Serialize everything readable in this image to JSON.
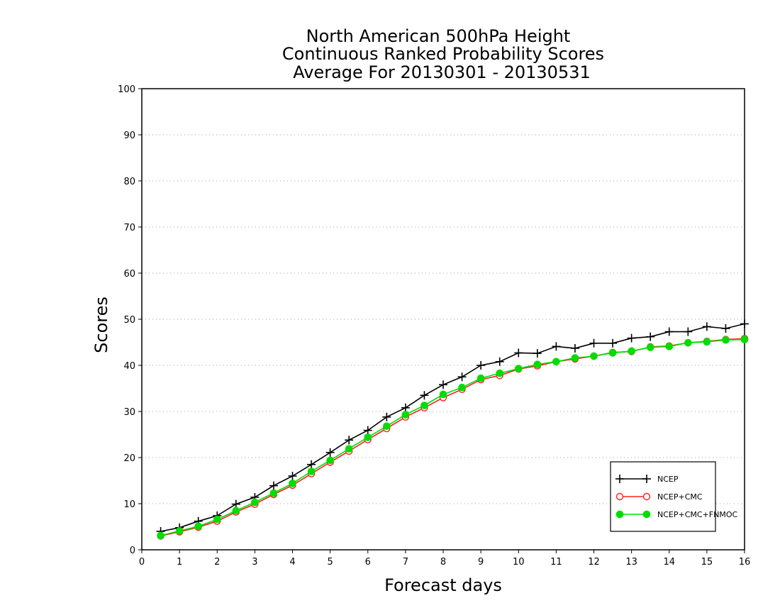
{
  "chart_data": {
    "type": "line",
    "title": [
      "North American 500hPa Height",
      "Continuous Ranked Probability Scores",
      "Average For 20130301 - 20130531"
    ],
    "xlabel": "Forecast days",
    "ylabel": "Scores",
    "xlim": [
      0,
      16
    ],
    "ylim": [
      0,
      100
    ],
    "xticks": [
      0,
      1,
      2,
      3,
      4,
      5,
      6,
      7,
      8,
      9,
      10,
      11,
      12,
      13,
      14,
      15,
      16
    ],
    "yticks": [
      0,
      10,
      20,
      30,
      40,
      50,
      60,
      70,
      80,
      90,
      100
    ],
    "grid": "horizontal dotted",
    "legend_position": "bottom-right",
    "x": [
      0.5,
      1,
      1.5,
      2,
      2.5,
      3,
      3.5,
      4,
      4.5,
      5,
      5.5,
      6,
      6.5,
      7,
      7.5,
      8,
      8.5,
      9,
      9.5,
      10,
      10.5,
      11,
      11.5,
      12,
      12.5,
      13,
      13.5,
      14,
      14.5,
      15,
      15.5,
      16
    ],
    "series": [
      {
        "name": "NCEP",
        "color": "#000000",
        "marker": "plus",
        "values": [
          4.0,
          4.8,
          6.2,
          7.4,
          9.9,
          11.4,
          13.9,
          16.0,
          18.5,
          21.1,
          23.8,
          25.9,
          28.8,
          30.8,
          33.5,
          35.8,
          37.5,
          40.0,
          40.8,
          42.7,
          42.6,
          44.1,
          43.7,
          44.8,
          44.8,
          45.9,
          46.2,
          47.3,
          47.3,
          48.4,
          48.0,
          49.0
        ]
      },
      {
        "name": "NCEP+CMC",
        "color": "#ff2020",
        "marker": "open-circle",
        "values": [
          3.0,
          3.9,
          4.9,
          6.2,
          8.2,
          9.9,
          12.0,
          14.0,
          16.5,
          19.0,
          21.4,
          23.9,
          26.3,
          28.8,
          30.8,
          33.0,
          34.8,
          36.9,
          37.8,
          39.2,
          39.9,
          40.8,
          41.4,
          42.0,
          42.8,
          43.0,
          44.0,
          44.2,
          44.9,
          45.2,
          45.6,
          45.8
        ]
      },
      {
        "name": "NCEP+CMC+FNMOC",
        "color": "#00dd00",
        "marker": "filled-circle",
        "values": [
          3.1,
          4.1,
          5.1,
          6.6,
          8.5,
          10.3,
          12.3,
          14.4,
          17.0,
          19.4,
          21.9,
          24.4,
          26.8,
          29.3,
          31.3,
          33.7,
          35.2,
          37.2,
          38.3,
          39.3,
          40.2,
          40.8,
          41.6,
          42.0,
          42.7,
          43.1,
          43.9,
          44.1,
          44.9,
          45.1,
          45.5,
          45.6
        ]
      }
    ]
  }
}
